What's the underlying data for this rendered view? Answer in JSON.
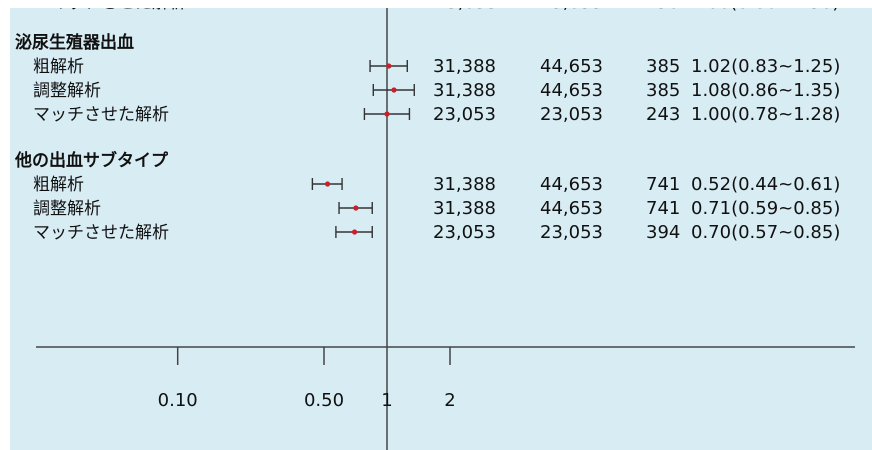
{
  "chart_data": {
    "type": "forest",
    "x_scale": "log",
    "reference_line": 1,
    "x_ticks": [
      "0.10",
      "0.50",
      "1",
      "2"
    ],
    "x_tick_values": [
      0.1,
      0.5,
      1,
      2
    ],
    "groups": [
      {
        "label": "泌尿生殖器出血",
        "rows": [
          {
            "label": "粗解析",
            "n1": "31,388",
            "n2": "44,653",
            "events": "385",
            "ci_text": "1.02(0.83~1.25)",
            "est": 1.02,
            "lo": 0.83,
            "hi": 1.25
          },
          {
            "label": "調整解析",
            "n1": "31,388",
            "n2": "44,653",
            "events": "385",
            "ci_text": "1.08(0.86~1.35)",
            "est": 1.08,
            "lo": 0.86,
            "hi": 1.35
          },
          {
            "label": "マッチさせた解析",
            "n1": "23,053",
            "n2": "23,053",
            "events": "243",
            "ci_text": "1.00(0.78~1.28)",
            "est": 1.0,
            "lo": 0.78,
            "hi": 1.28
          }
        ]
      },
      {
        "label": "他の出血サブタイプ",
        "rows": [
          {
            "label": "粗解析",
            "n1": "31,388",
            "n2": "44,653",
            "events": "741",
            "ci_text": "0.52(0.44~0.61)",
            "est": 0.52,
            "lo": 0.44,
            "hi": 0.61
          },
          {
            "label": "調整解析",
            "n1": "31,388",
            "n2": "44,653",
            "events": "741",
            "ci_text": "0.71(0.59~0.85)",
            "est": 0.71,
            "lo": 0.59,
            "hi": 0.85
          },
          {
            "label": "マッチさせた解析",
            "n1": "23,053",
            "n2": "23,053",
            "events": "394",
            "ci_text": "0.70(0.57~0.85)",
            "est": 0.7,
            "lo": 0.57,
            "hi": 0.85
          }
        ]
      }
    ]
  },
  "colors": {
    "background": "#d8ecf4",
    "point": "#cc1f2a",
    "line": "#333333",
    "axis": "#444444"
  }
}
